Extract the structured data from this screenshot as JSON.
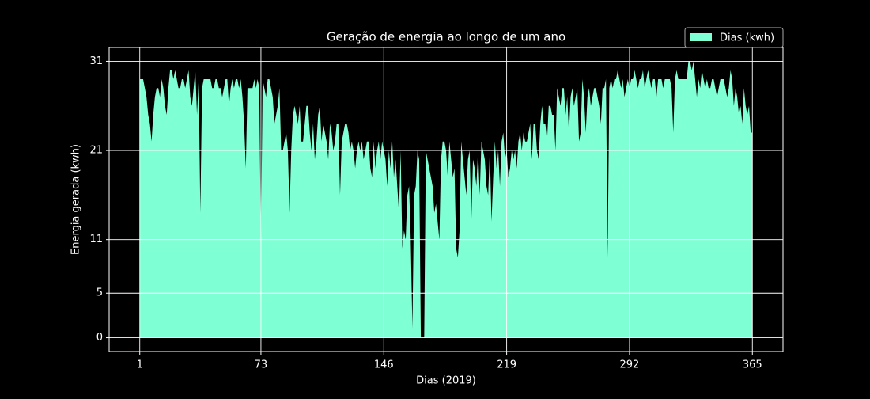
{
  "chart_data": {
    "type": "area",
    "title": "Geração de energia ao longo de um ano",
    "x_label": "Dias (2019)",
    "y_label": "Energia gerada (kwh)",
    "x": [
      1,
      2,
      3,
      4,
      5,
      6,
      7,
      8,
      9,
      10,
      11,
      12,
      13,
      14,
      15,
      16,
      17,
      18,
      19,
      20,
      21,
      22,
      23,
      24,
      25,
      26,
      27,
      28,
      29,
      30,
      31,
      32,
      33,
      34,
      35,
      36,
      37,
      38,
      39,
      40,
      41,
      42,
      43,
      44,
      45,
      46,
      47,
      48,
      49,
      50,
      51,
      52,
      53,
      54,
      55,
      56,
      57,
      58,
      59,
      60,
      61,
      62,
      63,
      64,
      65,
      66,
      67,
      68,
      69,
      70,
      71,
      72,
      73,
      74,
      75,
      76,
      77,
      78,
      79,
      80,
      81,
      82,
      83,
      84,
      85,
      86,
      87,
      88,
      89,
      90,
      91,
      92,
      93,
      94,
      95,
      96,
      97,
      98,
      99,
      100,
      101,
      102,
      103,
      104,
      105,
      106,
      107,
      108,
      109,
      110,
      111,
      112,
      113,
      114,
      115,
      116,
      117,
      118,
      119,
      120,
      121,
      122,
      123,
      124,
      125,
      126,
      127,
      128,
      129,
      130,
      131,
      132,
      133,
      134,
      135,
      136,
      137,
      138,
      139,
      140,
      141,
      142,
      143,
      144,
      145,
      146,
      147,
      148,
      149,
      150,
      151,
      152,
      153,
      154,
      155,
      156,
      157,
      158,
      159,
      160,
      161,
      162,
      163,
      164,
      165,
      166,
      167,
      168,
      169,
      170,
      171,
      172,
      173,
      174,
      175,
      176,
      177,
      178,
      179,
      180,
      181,
      182,
      183,
      184,
      185,
      186,
      187,
      188,
      189,
      190,
      191,
      192,
      193,
      194,
      195,
      196,
      197,
      198,
      199,
      200,
      201,
      202,
      203,
      204,
      205,
      206,
      207,
      208,
      209,
      210,
      211,
      212,
      213,
      214,
      215,
      216,
      217,
      218,
      219,
      220,
      221,
      222,
      223,
      224,
      225,
      226,
      227,
      228,
      229,
      230,
      231,
      232,
      233,
      234,
      235,
      236,
      237,
      238,
      239,
      240,
      241,
      242,
      243,
      244,
      245,
      246,
      247,
      248,
      249,
      250,
      251,
      252,
      253,
      254,
      255,
      256,
      257,
      258,
      259,
      260,
      261,
      262,
      263,
      264,
      265,
      266,
      267,
      268,
      269,
      270,
      271,
      272,
      273,
      274,
      275,
      276,
      277,
      278,
      279,
      280,
      281,
      282,
      283,
      284,
      285,
      286,
      287,
      288,
      289,
      290,
      291,
      292,
      293,
      294,
      295,
      296,
      297,
      298,
      299,
      300,
      301,
      302,
      303,
      304,
      305,
      306,
      307,
      308,
      309,
      310,
      311,
      312,
      313,
      314,
      315,
      316,
      317,
      318,
      319,
      320,
      321,
      322,
      323,
      324,
      325,
      326,
      327,
      328,
      329,
      330,
      331,
      332,
      333,
      334,
      335,
      336,
      337,
      338,
      339,
      340,
      341,
      342,
      343,
      344,
      345,
      346,
      347,
      348,
      349,
      350,
      351,
      352,
      353,
      354,
      355,
      356,
      357,
      358,
      359,
      360,
      361,
      362,
      363,
      364,
      365
    ],
    "series": [
      {
        "name": "Dias (kwh)",
        "color": "#7fffd4",
        "values": [
          29,
          29,
          29,
          28,
          27,
          25,
          24,
          22,
          25,
          27,
          28,
          28,
          27,
          29,
          28,
          26,
          25,
          28,
          30,
          30,
          29,
          30,
          29,
          28,
          28,
          29,
          29,
          28,
          29,
          30,
          27,
          26,
          28,
          30,
          25,
          29,
          14,
          28,
          29,
          29,
          29,
          29,
          29,
          28,
          28,
          29,
          29,
          28,
          28,
          27,
          28,
          29,
          29,
          26,
          28,
          29,
          28,
          29,
          29,
          28,
          29,
          27,
          24,
          19,
          28,
          28,
          28,
          28,
          29,
          28,
          29,
          28,
          10,
          29,
          28,
          27,
          29,
          29,
          28,
          27,
          24,
          25,
          26,
          28,
          21,
          21,
          22,
          23,
          21,
          14,
          21,
          25,
          26,
          25,
          24,
          26,
          22,
          22,
          24,
          26,
          26,
          23,
          21,
          24,
          20,
          22,
          25,
          26,
          22,
          24,
          23,
          22,
          20,
          24,
          23,
          21,
          22,
          24,
          24,
          16,
          22,
          23,
          24,
          24,
          23,
          21,
          22,
          21,
          19,
          21,
          22,
          21,
          22,
          20,
          21,
          22,
          22,
          19,
          18,
          22,
          19,
          21,
          22,
          20,
          22,
          21,
          20,
          17,
          21,
          19,
          22,
          18,
          20,
          17,
          14,
          21,
          10,
          12,
          11,
          16,
          17,
          11,
          1,
          16,
          17,
          21,
          20,
          0,
          0,
          0,
          21,
          20,
          19,
          18,
          17,
          14,
          15,
          13,
          11,
          20,
          22,
          22,
          21,
          18,
          22,
          20,
          18,
          19,
          10,
          9,
          12,
          22,
          20,
          18,
          16,
          20,
          21,
          13,
          20,
          19,
          17,
          21,
          16,
          22,
          21,
          20,
          17,
          16,
          21,
          13,
          18,
          22,
          19,
          21,
          17,
          22,
          23,
          20,
          21,
          18,
          19,
          21,
          20,
          21,
          19,
          22,
          23,
          21,
          23,
          22,
          22,
          23,
          24,
          20,
          24,
          24,
          21,
          20,
          24,
          26,
          24,
          24,
          22,
          26,
          26,
          25,
          25,
          21,
          28,
          27,
          26,
          28,
          28,
          25,
          27,
          23,
          27,
          28,
          26,
          27,
          28,
          22,
          23,
          29,
          27,
          23,
          27,
          28,
          26,
          27,
          28,
          28,
          27,
          26,
          24,
          28,
          28,
          29,
          9,
          28,
          29,
          28,
          29,
          29,
          30,
          29,
          28,
          29,
          27,
          28,
          29,
          28,
          29,
          29,
          30,
          29,
          28,
          29,
          29,
          30,
          28,
          29,
          30,
          29,
          28,
          29,
          29,
          27,
          29,
          29,
          29,
          28,
          29,
          29,
          29,
          29,
          28,
          23,
          29,
          30,
          29,
          29,
          29,
          29,
          29,
          29,
          31,
          31,
          30,
          31,
          29,
          27,
          29,
          28,
          30,
          29,
          28,
          29,
          28,
          28,
          29,
          29,
          28,
          27,
          28,
          29,
          29,
          29,
          28,
          27,
          28,
          30,
          29,
          26,
          28,
          27,
          25,
          26,
          24,
          28,
          26,
          25,
          26,
          23,
          23
        ]
      }
    ],
    "xlim": [
      -17.2,
      383.2
    ],
    "xticks": [
      1,
      73,
      146,
      219,
      292,
      365
    ],
    "ylim": [
      -1.55,
      32.55
    ],
    "yticks": [
      0,
      5,
      11,
      21,
      31
    ],
    "grid": true,
    "legend": "upper right"
  }
}
